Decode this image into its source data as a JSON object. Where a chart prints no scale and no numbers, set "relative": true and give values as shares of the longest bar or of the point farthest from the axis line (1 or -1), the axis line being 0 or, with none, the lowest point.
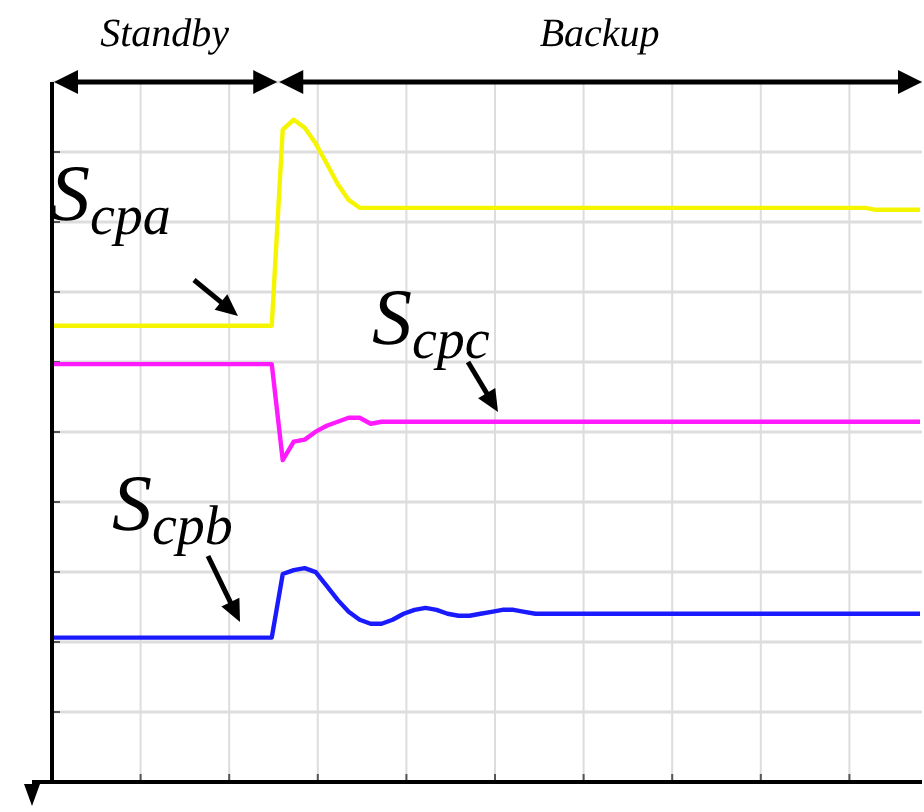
{
  "chart_data": {
    "type": "line",
    "relative": true,
    "grid": true,
    "line_style": "solid",
    "marker": "none",
    "annotations": [
      "Standby",
      "Backup"
    ],
    "categories": [
      null,
      null,
      null,
      null,
      null,
      null,
      null,
      null,
      null,
      null,
      null,
      null,
      null,
      null,
      null,
      null,
      null,
      null,
      null,
      null,
      null,
      null,
      null,
      null,
      null,
      null,
      null,
      null,
      null,
      null,
      null,
      null,
      null,
      null,
      null,
      null,
      null,
      null,
      null,
      null,
      null,
      null,
      null,
      null,
      null,
      null,
      null,
      null,
      null,
      null,
      null,
      null,
      null,
      null,
      null,
      null,
      null,
      null,
      null,
      null,
      null,
      null,
      null,
      null,
      null,
      null,
      null,
      null,
      null,
      null,
      null,
      null,
      null,
      null,
      null,
      null,
      null,
      null,
      null,
      null
    ],
    "series": [
      {
        "name": "S$_{cpa}$",
        "color": "#f5f500",
        "values": [
          0.689,
          0.689,
          0.689,
          0.689,
          0.689,
          0.689,
          0.689,
          0.689,
          0.689,
          0.689,
          0.689,
          0.689,
          0.689,
          0.689,
          0.689,
          0.689,
          0.689,
          0.689,
          0.689,
          0.689,
          0.689,
          0.985,
          1.0,
          0.988,
          0.964,
          0.934,
          0.903,
          0.879,
          0.867,
          0.867,
          0.867,
          0.867,
          0.867,
          0.867,
          0.867,
          0.867,
          0.867,
          0.867,
          0.867,
          0.867,
          0.867,
          0.867,
          0.867,
          0.867,
          0.867,
          0.867,
          0.867,
          0.867,
          0.867,
          0.867,
          0.867,
          0.867,
          0.867,
          0.867,
          0.867,
          0.867,
          0.867,
          0.867,
          0.867,
          0.867,
          0.867,
          0.867,
          0.867,
          0.867,
          0.867,
          0.867,
          0.867,
          0.867,
          0.867,
          0.867,
          0.867,
          0.867,
          0.867,
          0.867,
          0.867,
          0.864,
          0.864,
          0.864,
          0.864,
          0.864
        ]
      },
      {
        "name": "S$_{cpc}$",
        "color": "#ff1aff",
        "values": [
          0.631,
          0.631,
          0.631,
          0.631,
          0.631,
          0.631,
          0.631,
          0.631,
          0.631,
          0.631,
          0.631,
          0.631,
          0.631,
          0.631,
          0.631,
          0.631,
          0.631,
          0.631,
          0.631,
          0.631,
          0.631,
          0.486,
          0.514,
          0.517,
          0.529,
          0.538,
          0.544,
          0.55,
          0.55,
          0.541,
          0.544,
          0.544,
          0.544,
          0.544,
          0.544,
          0.544,
          0.544,
          0.544,
          0.544,
          0.544,
          0.544,
          0.544,
          0.544,
          0.544,
          0.544,
          0.544,
          0.544,
          0.544,
          0.544,
          0.544,
          0.544,
          0.544,
          0.544,
          0.544,
          0.544,
          0.544,
          0.544,
          0.544,
          0.544,
          0.544,
          0.544,
          0.544,
          0.544,
          0.544,
          0.544,
          0.544,
          0.544,
          0.544,
          0.544,
          0.544,
          0.544,
          0.544,
          0.544,
          0.544,
          0.544,
          0.544,
          0.544,
          0.544,
          0.544,
          0.544
        ]
      },
      {
        "name": "S$_{cpb}$",
        "color": "#1a1aff",
        "values": [
          0.218,
          0.218,
          0.218,
          0.218,
          0.218,
          0.218,
          0.218,
          0.218,
          0.218,
          0.218,
          0.218,
          0.218,
          0.218,
          0.218,
          0.218,
          0.218,
          0.218,
          0.218,
          0.218,
          0.218,
          0.218,
          0.314,
          0.32,
          0.323,
          0.317,
          0.296,
          0.275,
          0.257,
          0.245,
          0.239,
          0.239,
          0.245,
          0.254,
          0.26,
          0.263,
          0.26,
          0.254,
          0.251,
          0.251,
          0.254,
          0.257,
          0.26,
          0.26,
          0.257,
          0.254,
          0.254,
          0.254,
          0.254,
          0.254,
          0.254,
          0.254,
          0.254,
          0.254,
          0.254,
          0.254,
          0.254,
          0.254,
          0.254,
          0.254,
          0.254,
          0.254,
          0.254,
          0.254,
          0.254,
          0.254,
          0.254,
          0.254,
          0.254,
          0.254,
          0.254,
          0.254,
          0.254,
          0.254,
          0.254,
          0.254,
          0.254,
          0.254,
          0.254,
          0.254,
          0.254
        ]
      }
    ]
  }
}
